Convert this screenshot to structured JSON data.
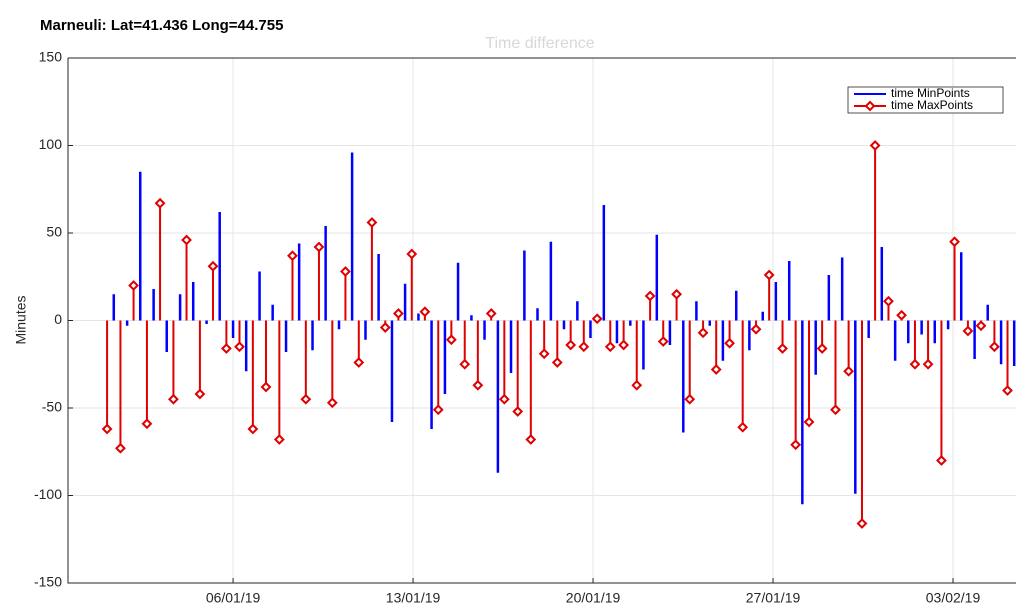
{
  "chart_data": {
    "type": "stem",
    "title": "Marneuli: Lat=41.436 Long=44.755",
    "subtitle": "Time difference",
    "y_label": "Minutes",
    "xlim": [
      -0.42,
      36.45
    ],
    "xticks": [
      {
        "value": 6,
        "label": "06/01/19"
      },
      {
        "value": 13,
        "label": "13/01/19"
      },
      {
        "value": 20,
        "label": "20/01/19"
      },
      {
        "value": 27,
        "label": "27/01/19"
      },
      {
        "value": 34,
        "label": "03/02/19"
      }
    ],
    "ylim": [
      -150,
      150
    ],
    "yticks": [
      -150,
      -100,
      -50,
      0,
      50,
      100,
      150
    ],
    "grid": true,
    "legend": "top-right",
    "series": [
      {
        "name": "time MinPoints",
        "color": "#0000ff",
        "marker": "none",
        "x": [
          1.36,
          1.88,
          2.39,
          2.91,
          3.42,
          3.94,
          4.45,
          4.97,
          5.48,
          6.0,
          6.51,
          7.03,
          7.54,
          8.06,
          8.57,
          9.09,
          9.6,
          10.12,
          10.63,
          11.15,
          11.66,
          12.18,
          12.69,
          13.21,
          13.72,
          14.24,
          14.75,
          15.27,
          15.78,
          16.3,
          16.81,
          17.33,
          17.84,
          18.36,
          18.87,
          19.39,
          19.9,
          20.42,
          20.93,
          21.45,
          21.96,
          22.48,
          22.99,
          23.51,
          24.02,
          24.54,
          25.05,
          25.57,
          26.08,
          26.6,
          27.11,
          27.63,
          28.14,
          28.66,
          29.17,
          29.69,
          30.2,
          30.72,
          31.23,
          31.75,
          32.26,
          32.78,
          33.29,
          33.81,
          34.32,
          34.84,
          35.35,
          35.87,
          36.38
        ],
        "values": [
          15,
          -3,
          85,
          18,
          -18,
          15,
          22,
          -2,
          62,
          -10,
          -29,
          28,
          9,
          -18,
          44,
          -17,
          54,
          -5,
          96,
          -11,
          38,
          -58,
          21,
          4,
          -62,
          -42,
          33,
          3,
          -11,
          -87,
          -30,
          40,
          7,
          45,
          -5,
          11,
          -10,
          66,
          -13,
          -3,
          -28,
          49,
          -14,
          -64,
          11,
          -3,
          -23,
          17,
          -17,
          5,
          22,
          34,
          -105,
          -31,
          26,
          36,
          -99,
          -10,
          42,
          -23,
          -13,
          -8,
          -13,
          -5,
          39,
          -22,
          9,
          -25,
          -26
        ]
      },
      {
        "name": "time MaxPoints",
        "color": "#e00000",
        "marker": "diamond",
        "x": [
          1.1,
          1.62,
          2.13,
          2.65,
          3.16,
          3.68,
          4.19,
          4.71,
          5.22,
          5.74,
          6.25,
          6.77,
          7.28,
          7.8,
          8.31,
          8.83,
          9.34,
          9.86,
          10.37,
          10.89,
          11.4,
          11.92,
          12.43,
          12.95,
          13.46,
          13.98,
          14.49,
          15.01,
          15.52,
          16.04,
          16.55,
          17.07,
          17.58,
          18.1,
          18.61,
          19.13,
          19.64,
          20.16,
          20.67,
          21.19,
          21.7,
          22.22,
          22.73,
          23.25,
          23.76,
          24.28,
          24.79,
          25.31,
          25.82,
          26.34,
          26.85,
          27.37,
          27.88,
          28.4,
          28.91,
          29.43,
          29.94,
          30.46,
          30.97,
          31.49,
          32.0,
          32.52,
          33.03,
          33.55,
          34.06,
          34.58,
          35.09,
          35.61,
          36.12
        ],
        "values": [
          -62,
          -73,
          20,
          -59,
          67,
          -45,
          46,
          -42,
          31,
          -16,
          -15,
          -62,
          -38,
          -68,
          37,
          -45,
          42,
          -47,
          28,
          -24,
          56,
          -4,
          4,
          38,
          5,
          -51,
          -11,
          -25,
          -37,
          4,
          -45,
          -52,
          -68,
          -19,
          -24,
          -14,
          -15,
          1,
          -15,
          -14,
          -37,
          14,
          -12,
          15,
          -45,
          -7,
          -28,
          -13,
          -61,
          -5,
          26,
          -16,
          -71,
          -58,
          -16,
          -51,
          -29,
          -116,
          100,
          11,
          3,
          -25,
          -25,
          -80,
          45,
          -6,
          -3,
          -15,
          -40
        ]
      }
    ]
  }
}
